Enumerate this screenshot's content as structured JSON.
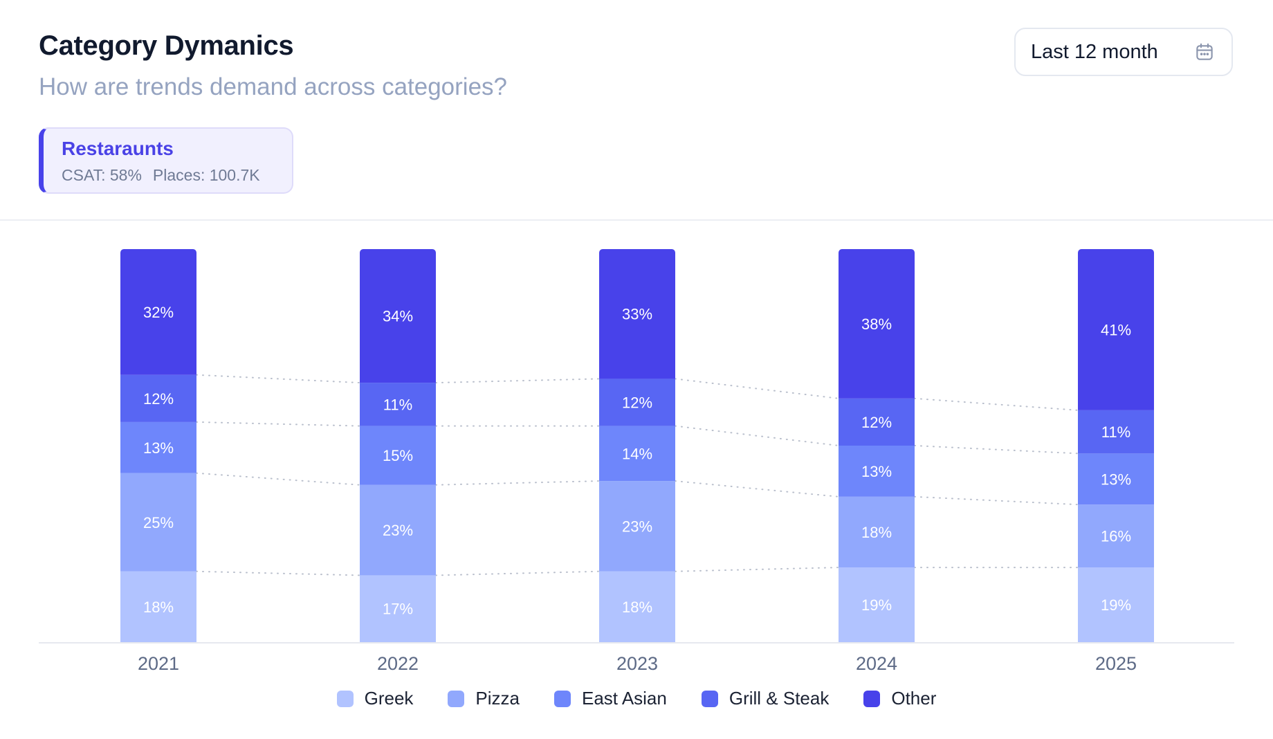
{
  "header": {
    "title": "Category Dymanics",
    "subtitle": "How are trends demand across categories?"
  },
  "period_selector": {
    "label": "Last 12 month",
    "icon": "calendar-icon"
  },
  "filter_card": {
    "title": "Restaraunts",
    "csat": "CSAT: 58%",
    "places": "Places: 100.7K"
  },
  "chart_data": {
    "type": "bar",
    "stacked": true,
    "categories": [
      "2021",
      "2022",
      "2023",
      "2024",
      "2025"
    ],
    "series": [
      {
        "name": "Greek",
        "color": "#b1c3ff",
        "values": [
          18,
          17,
          18,
          19,
          19
        ]
      },
      {
        "name": "Pizza",
        "color": "#91a8fd",
        "values": [
          25,
          23,
          23,
          18,
          16
        ]
      },
      {
        "name": "East Asian",
        "color": "#6e86fb",
        "values": [
          13,
          15,
          14,
          13,
          13
        ]
      },
      {
        "name": "Grill & Steak",
        "color": "#5866f3",
        "values": [
          12,
          11,
          12,
          12,
          11
        ]
      },
      {
        "name": "Other",
        "color": "#4842ea",
        "values": [
          32,
          34,
          33,
          38,
          41
        ]
      }
    ],
    "data_labels": [
      [
        "18%",
        "17%",
        "18%",
        "19%",
        "19%"
      ],
      [
        "25%",
        "23%",
        "23%",
        "18%",
        "16%"
      ],
      [
        "13%",
        "15%",
        "14%",
        "13%",
        "13%"
      ],
      [
        "12%",
        "11%",
        "12%",
        "12%",
        "11%"
      ],
      [
        "32%",
        "34%",
        "33%",
        "38%",
        "41%"
      ]
    ],
    "connector_lines": "dotted",
    "grid": false,
    "legend_position": "bottom"
  }
}
